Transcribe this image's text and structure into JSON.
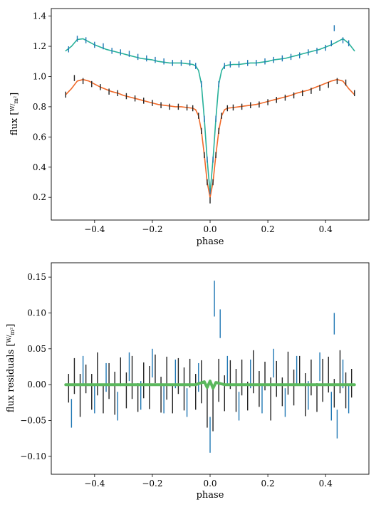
{
  "chart_data": [
    {
      "type": "line",
      "title": "",
      "xlabel": "phase",
      "ylabel": "flux [W/m²]",
      "ylabel_parts": {
        "quantity": "flux",
        "unit_num": "W",
        "unit_den": "m²"
      },
      "xlim": [
        -0.55,
        0.55
      ],
      "ylim": [
        0.05,
        1.45
      ],
      "xticks": [
        -0.4,
        -0.2,
        0.0,
        0.2,
        0.4
      ],
      "xtick_labels": [
        "−0.4",
        "−0.2",
        "0.0",
        "0.2",
        "0.4"
      ],
      "yticks": [
        0.2,
        0.4,
        0.6,
        0.8,
        1.0,
        1.2,
        1.4
      ],
      "ytick_labels": [
        "0.2",
        "0.4",
        "0.6",
        "0.8",
        "1.0",
        "1.2",
        "1.4"
      ],
      "grid": false,
      "series": [
        {
          "kind": "model",
          "color": "#27b19a",
          "x": [
            -0.5,
            -0.48,
            -0.46,
            -0.44,
            -0.42,
            -0.4,
            -0.38,
            -0.36,
            -0.34,
            -0.32,
            -0.3,
            -0.28,
            -0.26,
            -0.24,
            -0.22,
            -0.2,
            -0.18,
            -0.16,
            -0.14,
            -0.12,
            -0.1,
            -0.08,
            -0.06,
            -0.05,
            -0.04,
            -0.03,
            -0.02,
            -0.01,
            0.0,
            0.01,
            0.02,
            0.03,
            0.04,
            0.05,
            0.06,
            0.08,
            0.1,
            0.12,
            0.14,
            0.16,
            0.18,
            0.2,
            0.22,
            0.24,
            0.26,
            0.28,
            0.3,
            0.32,
            0.34,
            0.36,
            0.38,
            0.4,
            0.42,
            0.44,
            0.46,
            0.48,
            0.5
          ],
          "y": [
            1.17,
            1.2,
            1.245,
            1.25,
            1.23,
            1.21,
            1.195,
            1.18,
            1.17,
            1.16,
            1.15,
            1.14,
            1.13,
            1.12,
            1.115,
            1.11,
            1.1,
            1.095,
            1.09,
            1.09,
            1.09,
            1.085,
            1.08,
            1.07,
            1.04,
            0.95,
            0.72,
            0.45,
            0.23,
            0.45,
            0.72,
            0.95,
            1.04,
            1.07,
            1.075,
            1.08,
            1.08,
            1.085,
            1.09,
            1.09,
            1.095,
            1.1,
            1.11,
            1.115,
            1.12,
            1.13,
            1.14,
            1.15,
            1.16,
            1.17,
            1.18,
            1.195,
            1.21,
            1.23,
            1.25,
            1.22,
            1.17
          ]
        },
        {
          "kind": "model",
          "color": "#f06a2a",
          "x": [
            -0.5,
            -0.48,
            -0.46,
            -0.44,
            -0.42,
            -0.4,
            -0.38,
            -0.36,
            -0.34,
            -0.32,
            -0.3,
            -0.28,
            -0.26,
            -0.24,
            -0.22,
            -0.2,
            -0.18,
            -0.16,
            -0.14,
            -0.12,
            -0.1,
            -0.08,
            -0.06,
            -0.05,
            -0.04,
            -0.03,
            -0.02,
            -0.01,
            0.0,
            0.01,
            0.02,
            0.03,
            0.04,
            0.05,
            0.06,
            0.08,
            0.1,
            0.12,
            0.14,
            0.16,
            0.18,
            0.2,
            0.22,
            0.24,
            0.26,
            0.28,
            0.3,
            0.32,
            0.34,
            0.36,
            0.38,
            0.4,
            0.42,
            0.44,
            0.46,
            0.48,
            0.5
          ],
          "y": [
            0.88,
            0.92,
            0.97,
            0.98,
            0.97,
            0.95,
            0.93,
            0.915,
            0.9,
            0.89,
            0.875,
            0.865,
            0.855,
            0.845,
            0.835,
            0.825,
            0.815,
            0.81,
            0.805,
            0.8,
            0.8,
            0.795,
            0.79,
            0.78,
            0.74,
            0.64,
            0.48,
            0.3,
            0.2,
            0.3,
            0.48,
            0.64,
            0.74,
            0.78,
            0.79,
            0.795,
            0.8,
            0.805,
            0.81,
            0.815,
            0.825,
            0.835,
            0.845,
            0.855,
            0.865,
            0.875,
            0.89,
            0.9,
            0.91,
            0.925,
            0.94,
            0.955,
            0.97,
            0.98,
            0.97,
            0.92,
            0.88
          ]
        },
        {
          "kind": "data-errorbars",
          "color": "#1f77b4",
          "x": [
            -0.49,
            -0.46,
            -0.43,
            -0.4,
            -0.37,
            -0.34,
            -0.31,
            -0.28,
            -0.25,
            -0.22,
            -0.19,
            -0.16,
            -0.13,
            -0.1,
            -0.07,
            -0.05,
            -0.03,
            -0.02,
            -0.01,
            0.0,
            0.01,
            0.02,
            0.03,
            0.05,
            0.07,
            0.1,
            0.13,
            0.16,
            0.19,
            0.22,
            0.25,
            0.28,
            0.31,
            0.34,
            0.37,
            0.4,
            0.42,
            0.43,
            0.46,
            0.48
          ],
          "y": [
            1.18,
            1.25,
            1.24,
            1.21,
            1.2,
            1.17,
            1.16,
            1.15,
            1.13,
            1.12,
            1.11,
            1.1,
            1.09,
            1.09,
            1.09,
            1.07,
            0.95,
            0.72,
            0.45,
            0.24,
            0.45,
            0.72,
            0.95,
            1.07,
            1.08,
            1.08,
            1.09,
            1.09,
            1.1,
            1.11,
            1.12,
            1.13,
            1.14,
            1.16,
            1.17,
            1.19,
            1.22,
            1.32,
            1.24,
            1.22
          ],
          "err": [
            0.02,
            0.02,
            0.02,
            0.02,
            0.02,
            0.02,
            0.02,
            0.02,
            0.02,
            0.02,
            0.02,
            0.02,
            0.02,
            0.02,
            0.02,
            0.02,
            0.02,
            0.02,
            0.02,
            0.02,
            0.02,
            0.02,
            0.02,
            0.02,
            0.02,
            0.02,
            0.02,
            0.02,
            0.02,
            0.02,
            0.02,
            0.02,
            0.02,
            0.02,
            0.02,
            0.02,
            0.02,
            0.02,
            0.02,
            0.02
          ]
        },
        {
          "kind": "data-errorbars",
          "color": "#222222",
          "x": [
            -0.5,
            -0.47,
            -0.44,
            -0.41,
            -0.38,
            -0.35,
            -0.32,
            -0.29,
            -0.26,
            -0.23,
            -0.2,
            -0.17,
            -0.14,
            -0.11,
            -0.08,
            -0.06,
            -0.04,
            -0.03,
            -0.02,
            -0.01,
            0.0,
            0.01,
            0.02,
            0.03,
            0.04,
            0.06,
            0.08,
            0.11,
            0.14,
            0.17,
            0.2,
            0.23,
            0.26,
            0.29,
            0.32,
            0.35,
            0.38,
            0.41,
            0.44,
            0.47,
            0.5
          ],
          "y": [
            0.88,
            0.99,
            0.97,
            0.95,
            0.93,
            0.9,
            0.89,
            0.87,
            0.855,
            0.84,
            0.825,
            0.81,
            0.8,
            0.8,
            0.795,
            0.79,
            0.74,
            0.64,
            0.48,
            0.3,
            0.18,
            0.3,
            0.48,
            0.64,
            0.74,
            0.79,
            0.795,
            0.8,
            0.81,
            0.815,
            0.83,
            0.845,
            0.86,
            0.875,
            0.89,
            0.905,
            0.925,
            0.945,
            0.97,
            0.96,
            0.89
          ],
          "err": [
            0.02,
            0.02,
            0.02,
            0.02,
            0.02,
            0.02,
            0.02,
            0.02,
            0.02,
            0.02,
            0.02,
            0.02,
            0.02,
            0.02,
            0.02,
            0.02,
            0.02,
            0.02,
            0.02,
            0.02,
            0.02,
            0.02,
            0.02,
            0.02,
            0.02,
            0.02,
            0.02,
            0.02,
            0.02,
            0.02,
            0.02,
            0.02,
            0.02,
            0.02,
            0.02,
            0.02,
            0.02,
            0.02,
            0.02,
            0.02,
            0.02
          ]
        }
      ]
    },
    {
      "type": "line",
      "title": "",
      "xlabel": "phase",
      "ylabel": "flux residuals [W/m²]",
      "ylabel_parts": {
        "quantity": "flux residuals",
        "unit_num": "W",
        "unit_den": "m²"
      },
      "xlim": [
        -0.55,
        0.55
      ],
      "ylim": [
        -0.125,
        0.17
      ],
      "xticks": [
        -0.4,
        -0.2,
        0.0,
        0.2,
        0.4
      ],
      "xtick_labels": [
        "−0.4",
        "−0.2",
        "0.0",
        "0.2",
        "0.4"
      ],
      "yticks": [
        -0.1,
        -0.05,
        0.0,
        0.05,
        0.1,
        0.15
      ],
      "ytick_labels": [
        "−0.10",
        "−0.05",
        "0.00",
        "0.05",
        "0.10",
        "0.15"
      ],
      "grid": false,
      "series": [
        {
          "kind": "residual-errorbars",
          "color": "#222222",
          "x": [
            -0.49,
            -0.47,
            -0.45,
            -0.43,
            -0.41,
            -0.39,
            -0.37,
            -0.35,
            -0.33,
            -0.31,
            -0.29,
            -0.27,
            -0.25,
            -0.23,
            -0.21,
            -0.19,
            -0.17,
            -0.15,
            -0.13,
            -0.11,
            -0.09,
            -0.07,
            -0.05,
            -0.03,
            -0.01,
            0.01,
            0.03,
            0.05,
            0.07,
            0.09,
            0.11,
            0.13,
            0.15,
            0.17,
            0.19,
            0.21,
            0.23,
            0.25,
            0.27,
            0.29,
            0.31,
            0.33,
            0.35,
            0.37,
            0.39,
            0.41,
            0.43,
            0.45,
            0.47,
            0.49
          ],
          "y": [
            -0.005,
            0.012,
            -0.015,
            0.008,
            -0.01,
            0.015,
            -0.02,
            0.005,
            -0.012,
            0.018,
            -0.008,
            0.01,
            -0.018,
            0.006,
            -0.004,
            0.022,
            -0.014,
            0.009,
            -0.02,
            0.012,
            -0.006,
            0.016,
            -0.01,
            0.004,
            -0.03,
            -0.035,
            0.006,
            -0.012,
            0.014,
            -0.008,
            0.01,
            -0.016,
            0.018,
            -0.006,
            0.012,
            -0.02,
            0.008,
            -0.01,
            0.016,
            -0.004,
            0.02,
            -0.014,
            0.01,
            -0.018,
            0.006,
            0.014,
            -0.012,
            0.018,
            -0.008,
            0.002
          ],
          "err": [
            0.02,
            0.025,
            0.03,
            0.02,
            0.025,
            0.03,
            0.02,
            0.025,
            0.03,
            0.02,
            0.025,
            0.03,
            0.02,
            0.025,
            0.03,
            0.02,
            0.025,
            0.03,
            0.02,
            0.025,
            0.03,
            0.02,
            0.025,
            0.03,
            0.03,
            0.03,
            0.03,
            0.025,
            0.02,
            0.03,
            0.025,
            0.02,
            0.03,
            0.025,
            0.02,
            0.03,
            0.025,
            0.02,
            0.03,
            0.025,
            0.02,
            0.03,
            0.025,
            0.02,
            0.03,
            0.025,
            0.02,
            0.03,
            0.025,
            0.02
          ]
        },
        {
          "kind": "residual-errorbars",
          "color": "#1f77b4",
          "x": [
            -0.48,
            -0.44,
            -0.4,
            -0.36,
            -0.32,
            -0.28,
            -0.24,
            -0.2,
            -0.16,
            -0.12,
            -0.08,
            -0.04,
            0.0,
            0.015,
            0.035,
            0.06,
            0.1,
            0.14,
            0.18,
            0.22,
            0.26,
            0.3,
            0.34,
            0.38,
            0.42,
            0.43,
            0.44,
            0.46,
            0.48
          ],
          "y": [
            -0.04,
            0.02,
            -0.02,
            0.01,
            -0.03,
            0.025,
            -0.015,
            0.03,
            -0.02,
            0.015,
            -0.025,
            0.01,
            -0.07,
            0.12,
            0.085,
            0.02,
            -0.03,
            0.015,
            -0.02,
            0.03,
            -0.025,
            0.02,
            -0.015,
            0.025,
            -0.03,
            0.085,
            -0.055,
            0.015,
            -0.02
          ],
          "err": [
            0.02,
            0.02,
            0.02,
            0.02,
            0.02,
            0.02,
            0.02,
            0.02,
            0.02,
            0.02,
            0.02,
            0.02,
            0.025,
            0.025,
            0.02,
            0.02,
            0.02,
            0.02,
            0.02,
            0.02,
            0.02,
            0.02,
            0.02,
            0.02,
            0.02,
            0.015,
            0.02,
            0.02,
            0.02
          ]
        },
        {
          "kind": "model-residual",
          "color": "#5bb85d",
          "x": [
            -0.5,
            -0.4,
            -0.3,
            -0.2,
            -0.1,
            -0.05,
            -0.02,
            -0.01,
            0.0,
            0.01,
            0.02,
            0.05,
            0.1,
            0.2,
            0.3,
            0.4,
            0.5
          ],
          "y": [
            0.0,
            0.0,
            0.0,
            0.0,
            0.0,
            0.0,
            0.004,
            -0.004,
            0.005,
            -0.005,
            0.003,
            0.0,
            0.0,
            0.0,
            0.0,
            0.0,
            0.0
          ]
        }
      ]
    }
  ]
}
